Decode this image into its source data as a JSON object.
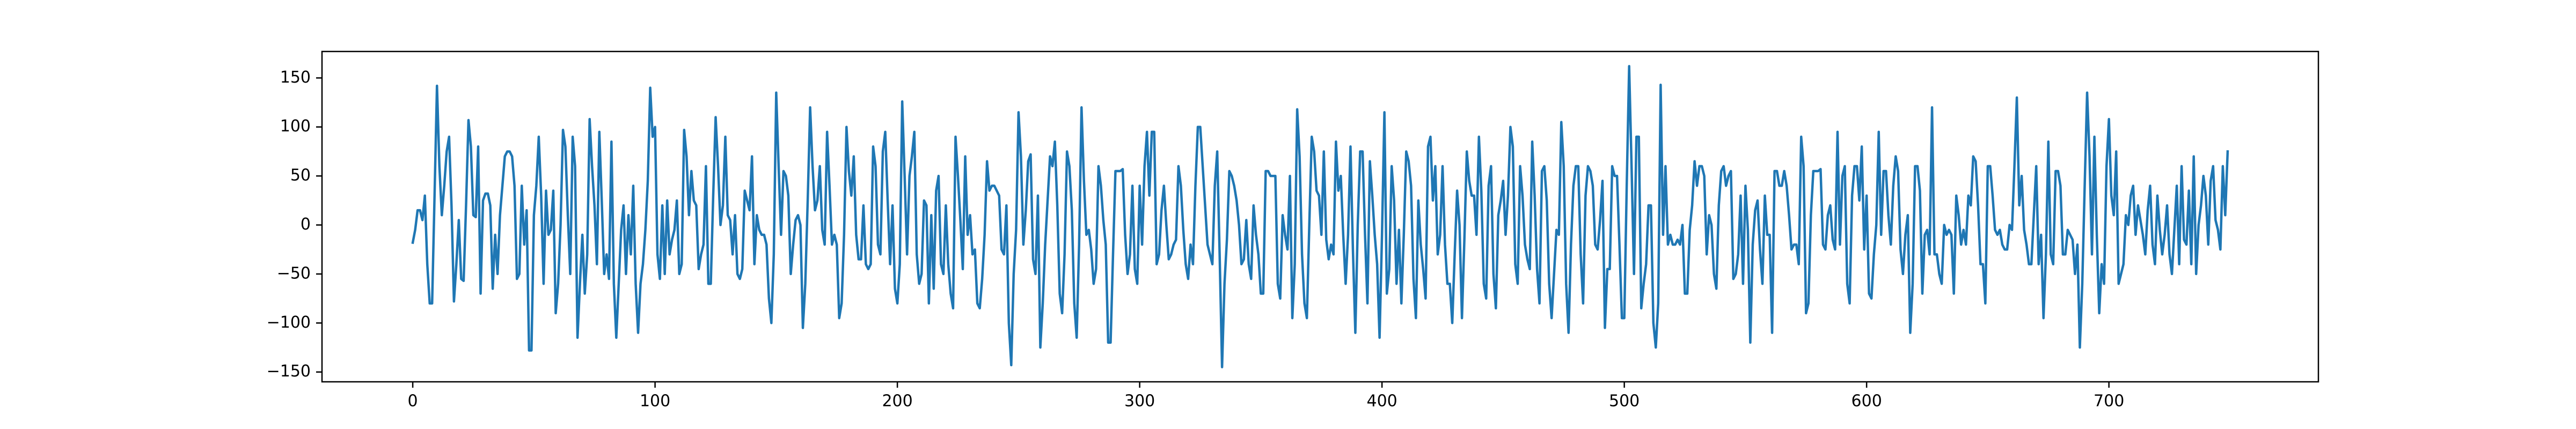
{
  "chart_data": {
    "type": "line",
    "color": "#1f77b4",
    "xlim": [
      -37.45,
      786.45
    ],
    "xticks": [
      0,
      100,
      200,
      300,
      400,
      500,
      600,
      700
    ],
    "ylim": [
      -160,
      177
    ],
    "yticks": [
      {
        "value": -150,
        "label": "−150"
      },
      {
        "value": -100,
        "label": "−100"
      },
      {
        "value": -50,
        "label": "−50"
      },
      0,
      50,
      100,
      150
    ],
    "grid": false,
    "values": [
      -18,
      -5,
      15,
      15,
      5,
      30,
      -40,
      -80,
      -80,
      30,
      142,
      60,
      10,
      40,
      75,
      90,
      20,
      -78,
      -40,
      5,
      -55,
      -57,
      20,
      107,
      80,
      10,
      8,
      80,
      -70,
      25,
      32,
      32,
      20,
      -65,
      -10,
      -50,
      10,
      40,
      70,
      75,
      75,
      70,
      40,
      -55,
      -50,
      40,
      -20,
      15,
      -128,
      -128,
      10,
      40,
      90,
      30,
      -60,
      35,
      -10,
      -5,
      35,
      -90,
      -60,
      0,
      97,
      80,
      10,
      -50,
      90,
      60,
      -115,
      -60,
      -10,
      -70,
      -30,
      108,
      60,
      20,
      -40,
      95,
      25,
      -50,
      -30,
      -55,
      85,
      -60,
      -115,
      -60,
      -5,
      20,
      -50,
      10,
      -30,
      40,
      -60,
      -110,
      -60,
      -40,
      -5,
      45,
      140,
      90,
      100,
      -30,
      -55,
      20,
      -50,
      25,
      -30,
      -15,
      -5,
      25,
      -50,
      -40,
      97,
      70,
      10,
      55,
      25,
      20,
      -45,
      -30,
      -20,
      60,
      -60,
      -60,
      30,
      110,
      60,
      0,
      20,
      90,
      10,
      5,
      -30,
      10,
      -50,
      -55,
      -45,
      35,
      25,
      15,
      70,
      -40,
      10,
      -5,
      -10,
      -10,
      -20,
      -75,
      -100,
      -30,
      135,
      60,
      -10,
      55,
      50,
      30,
      -50,
      -20,
      5,
      10,
      0,
      -105,
      -60,
      25,
      120,
      60,
      15,
      25,
      60,
      -5,
      -20,
      95,
      40,
      -20,
      -10,
      -20,
      -95,
      -80,
      -10,
      100,
      55,
      30,
      70,
      -10,
      -35,
      -35,
      20,
      -40,
      -45,
      -40,
      80,
      60,
      -20,
      -30,
      75,
      95,
      25,
      -40,
      20,
      -65,
      -80,
      -40,
      126,
      50,
      -30,
      50,
      70,
      95,
      -30,
      -60,
      -50,
      25,
      20,
      -80,
      10,
      -65,
      35,
      50,
      -40,
      -50,
      20,
      -40,
      -70,
      -85,
      90,
      50,
      5,
      -45,
      70,
      -10,
      10,
      -30,
      -25,
      -80,
      -85,
      -55,
      -10,
      65,
      35,
      40,
      40,
      35,
      30,
      -25,
      -30,
      20,
      -100,
      -143,
      -50,
      -5,
      115,
      70,
      -20,
      15,
      65,
      72,
      -35,
      -50,
      30,
      -125,
      -80,
      -20,
      25,
      70,
      60,
      85,
      20,
      -70,
      -90,
      -30,
      75,
      60,
      15,
      -80,
      -115,
      -20,
      120,
      45,
      -10,
      -5,
      -25,
      -60,
      -45,
      60,
      40,
      5,
      -20,
      -120,
      -120,
      -30,
      55,
      55,
      55,
      57,
      -10,
      -50,
      -30,
      40,
      -45,
      -60,
      40,
      -20,
      60,
      95,
      30,
      95,
      95,
      -40,
      -30,
      15,
      40,
      0,
      -35,
      -30,
      -20,
      -15,
      60,
      40,
      -5,
      -40,
      -55,
      -20,
      -40,
      40,
      100,
      100,
      60,
      20,
      -20,
      -30,
      -40,
      40,
      75,
      -30,
      -145,
      -60,
      -15,
      55,
      50,
      40,
      25,
      0,
      -40,
      -35,
      5,
      -40,
      -55,
      20,
      -10,
      -30,
      -70,
      -70,
      55,
      55,
      50,
      50,
      50,
      -60,
      -75,
      10,
      -10,
      -25,
      50,
      -95,
      -40,
      118,
      70,
      -30,
      -80,
      -95,
      0,
      90,
      75,
      35,
      30,
      -10,
      75,
      -15,
      -35,
      -20,
      -30,
      85,
      35,
      50,
      -10,
      -60,
      -10,
      80,
      -25,
      -110,
      0,
      75,
      75,
      -10,
      -80,
      65,
      30,
      -10,
      -40,
      -115,
      -10,
      115,
      -70,
      -45,
      60,
      25,
      -60,
      -5,
      -80,
      -10,
      75,
      65,
      40,
      -55,
      -95,
      25,
      -20,
      -45,
      -75,
      80,
      90,
      25,
      60,
      -30,
      -10,
      60,
      -20,
      -60,
      -60,
      -100,
      -30,
      35,
      0,
      -95,
      -15,
      75,
      45,
      30,
      30,
      -10,
      90,
      35,
      -60,
      -75,
      40,
      60,
      -50,
      -85,
      10,
      25,
      45,
      -10,
      30,
      100,
      80,
      -40,
      -60,
      60,
      30,
      -20,
      -35,
      -45,
      85,
      30,
      -45,
      -80,
      55,
      60,
      25,
      -60,
      -95,
      -50,
      -5,
      -10,
      105,
      60,
      -60,
      -110,
      -20,
      40,
      60,
      60,
      -30,
      -80,
      30,
      60,
      55,
      40,
      -20,
      -25,
      5,
      45,
      -105,
      -45,
      -45,
      60,
      50,
      50,
      -20,
      -95,
      -95,
      40,
      162,
      60,
      -50,
      90,
      90,
      -85,
      -60,
      -40,
      20,
      20,
      -100,
      -125,
      -80,
      143,
      -10,
      60,
      -20,
      -10,
      -20,
      -20,
      -15,
      -20,
      0,
      -70,
      -70,
      -5,
      20,
      65,
      40,
      60,
      60,
      50,
      -30,
      10,
      0,
      -50,
      -65,
      20,
      55,
      60,
      40,
      50,
      55,
      -55,
      -50,
      -30,
      30,
      -60,
      40,
      -5,
      -120,
      -20,
      15,
      25,
      -25,
      -60,
      30,
      -10,
      -10,
      -110,
      55,
      55,
      40,
      40,
      55,
      40,
      10,
      -25,
      -20,
      -20,
      -40,
      90,
      60,
      -90,
      -80,
      10,
      55,
      55,
      55,
      57,
      -20,
      -25,
      10,
      20,
      -15,
      -25,
      95,
      -20,
      50,
      60,
      -60,
      -80,
      30,
      60,
      60,
      25,
      80,
      -25,
      30,
      -70,
      -75,
      -30,
      0,
      95,
      -10,
      55,
      55,
      10,
      -20,
      40,
      70,
      55,
      -25,
      -50,
      -10,
      10,
      -110,
      -60,
      60,
      60,
      35,
      -70,
      -10,
      -5,
      -30,
      120,
      -30,
      -30,
      -50,
      -60,
      0,
      -10,
      -5,
      -10,
      -70,
      30,
      10,
      -20,
      -5,
      -20,
      30,
      20,
      70,
      65,
      20,
      -40,
      -40,
      -80,
      60,
      60,
      30,
      -5,
      -10,
      -5,
      -20,
      -25,
      -25,
      0,
      -5,
      60,
      130,
      20,
      50,
      -5,
      -20,
      -40,
      -40,
      10,
      60,
      -40,
      -10,
      -95,
      -30,
      85,
      -30,
      -40,
      55,
      55,
      40,
      -30,
      -30,
      -5,
      -10,
      -15,
      -50,
      -20,
      -125,
      -60,
      40,
      135,
      70,
      -30,
      90,
      -10,
      -90,
      -40,
      -60,
      60,
      108,
      30,
      10,
      75,
      -60,
      -50,
      -40,
      10,
      0,
      30,
      40,
      -10,
      20,
      5,
      -10,
      -30,
      15,
      40,
      -20,
      -40,
      30,
      -5,
      -30,
      -10,
      20,
      -30,
      -50,
      -5,
      40,
      -40,
      60,
      -15,
      -20,
      35,
      -40,
      70,
      -50,
      0,
      20,
      50,
      30,
      -20,
      45,
      60,
      5,
      -5,
      -25,
      60,
      10,
      75
    ]
  }
}
